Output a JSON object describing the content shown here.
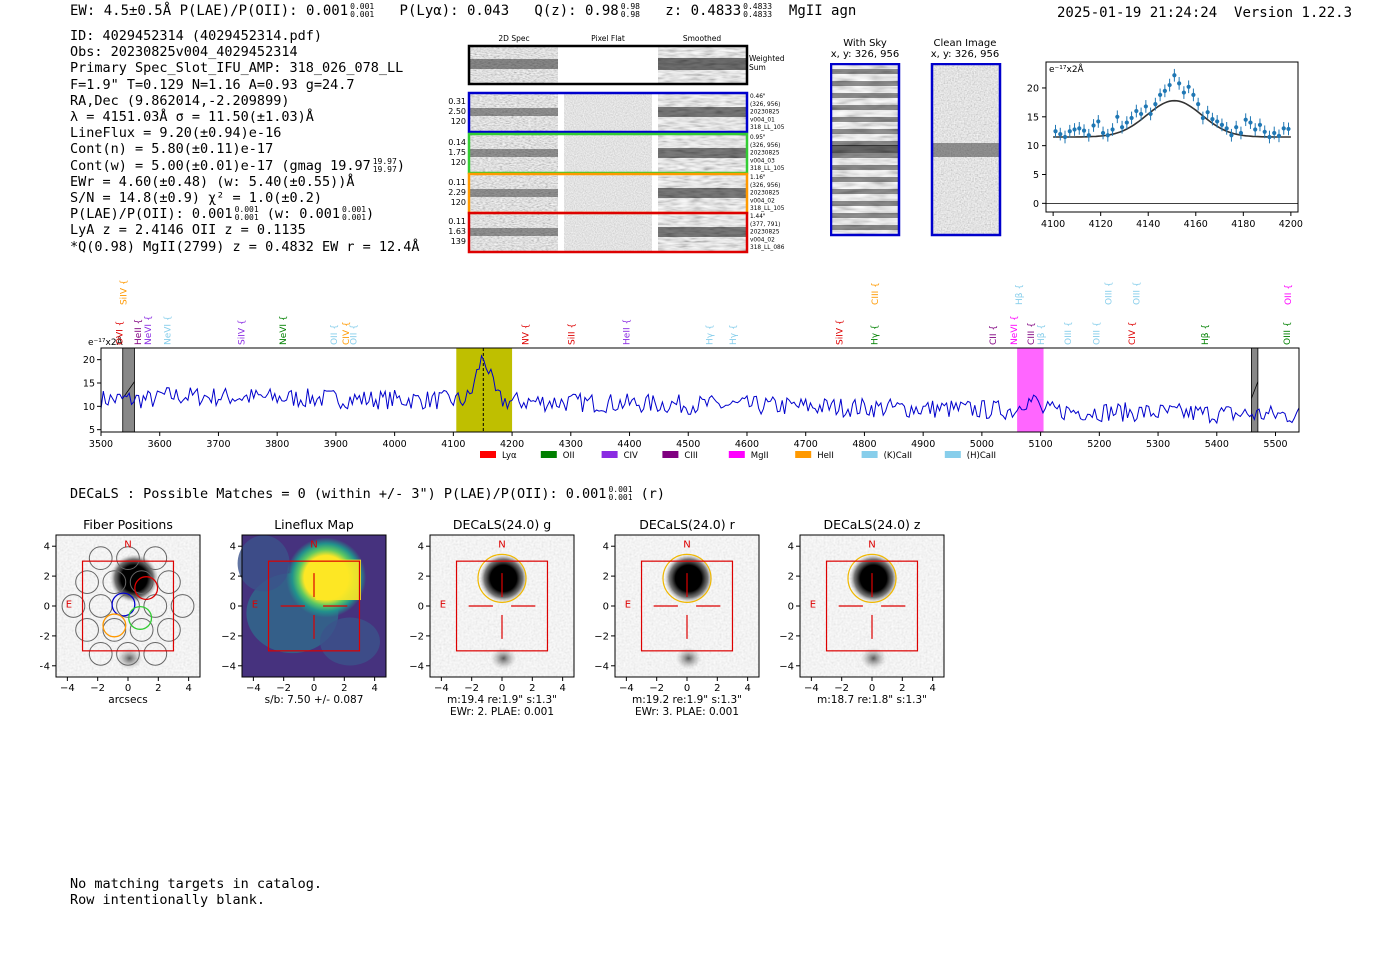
{
  "header": {
    "summary": "EW: 4.5±0.5Å  P(LAE)/P(OII): 0.001",
    "summary_sup": "0.001",
    "summary_sub": "0.001",
    "plya": "P(Lyα): 0.043",
    "q": "Q(z): 0.98",
    "q_sup": "0.98",
    "q_sub": "0.98",
    "z": "z: 0.4833",
    "z_sup": "0.4833",
    "z_sub": "0.4833",
    "tags": "MgII  agn",
    "timestamp": "2025-01-19 21:24:24",
    "version": "Version 1.22.3"
  },
  "info": {
    "lines": [
      "ID: 4029452314 (4029452314.pdf)",
      "Obs: 20230825v004_4029452314",
      "Primary Spec_Slot_IFU_AMP: 318_026_078_LL",
      "F=1.9\"  T=0.129  N=1.16  A=0.93  g=24.7",
      "RA,Dec (9.862014,-2.209899)",
      "λ = 4151.03Å  σ = 11.50(±1.03)Å",
      "LineFlux = 9.20(±0.94)e-16",
      "Cont(n) = 5.80(±0.11)e-17"
    ],
    "contw": "Cont(w) = 5.00(±0.01)e-17 (gmag 19.97",
    "contw_sup": "19.97",
    "contw_sub": "19.97",
    "contw_end": ")",
    "ewr": "EWr = 4.60(±0.48) (w: 5.40(±0.55))Å",
    "sn": "S/N = 14.8(±0.9)  χ² = 1.0(±0.2)",
    "plae": "P(LAE)/P(OII): 0.001",
    "plae_sup": "0.001",
    "plae_sub": "0.001",
    "plae_w": "(w: 0.001",
    "plae_w_sup": "0.001",
    "plae_w_sub": "0.001",
    "plae_end": ")",
    "lya": "LyA z = 2.4146   OII z = 0.1135",
    "qline": "*Q(0.98) MgII(2799) z = 0.4832  EW r = 12.4Å"
  },
  "cutouts": {
    "col_titles": [
      "2D Spec",
      "Pixel Flat",
      "Smoothed"
    ],
    "weighted_label": "Weighted\nSum",
    "rows": [
      {
        "left": [
          "0.31",
          "2.50",
          "120"
        ],
        "right": [
          "0.46\"",
          "(326, 956)",
          "20230825",
          "v004_01",
          "318_LL_105"
        ],
        "color": "#0000cc"
      },
      {
        "left": [
          "0.14",
          "1.75",
          "120"
        ],
        "right": [
          "0.95\"",
          "(326, 956)",
          "20230825",
          "v004_03",
          "318_LL_105"
        ],
        "color": "#33cc33"
      },
      {
        "left": [
          "0.11",
          "2.29",
          "120"
        ],
        "right": [
          "1.16\"",
          "(326, 956)",
          "20230825",
          "v004_02",
          "318_LL_105"
        ],
        "color": "#ff9900"
      },
      {
        "left": [
          "0.11",
          "1.63",
          "139"
        ],
        "right": [
          "1.44\"",
          "(377, 791)",
          "20230825",
          "v004_02",
          "318_LL_086"
        ],
        "color": "#dd0000"
      }
    ],
    "with_sky_title": "With Sky",
    "with_sky_coords": "x, y: 326, 956",
    "clean_title": "Clean Image",
    "clean_coords": "x, y: 326, 956"
  },
  "zoom_chart": {
    "type": "line",
    "unit": "e⁻¹⁷x2Å",
    "xlim": [
      4097,
      4203
    ],
    "ylim": [
      -1.5,
      24.5
    ],
    "xticks": [
      4100,
      4120,
      4140,
      4160,
      4180,
      4200
    ],
    "yticks": [
      0,
      5,
      10,
      15,
      20
    ],
    "points_x": [
      4101,
      4103,
      4105,
      4107,
      4109,
      4111,
      4113,
      4115,
      4117,
      4119,
      4121,
      4123,
      4125,
      4127,
      4129,
      4131,
      4133,
      4135,
      4137,
      4139,
      4141,
      4143,
      4145,
      4147,
      4149,
      4151,
      4153,
      4155,
      4157,
      4159,
      4161,
      4163,
      4165,
      4167,
      4169,
      4171,
      4173,
      4175,
      4177,
      4179,
      4181,
      4183,
      4185,
      4187,
      4189,
      4191,
      4193,
      4195,
      4197,
      4199
    ],
    "points_y": [
      12.5,
      12.0,
      11.5,
      12.5,
      12.8,
      13.0,
      12.6,
      11.8,
      13.5,
      14.2,
      12.2,
      11.8,
      12.8,
      15.0,
      13.2,
      14.0,
      14.8,
      16.0,
      15.5,
      16.8,
      15.5,
      17.2,
      18.8,
      19.5,
      20.5,
      22.2,
      20.8,
      19.2,
      20.2,
      18.8,
      17.2,
      14.8,
      15.8,
      14.6,
      14.2,
      13.6,
      13.0,
      11.8,
      13.2,
      12.2,
      14.5,
      14.0,
      12.8,
      13.6,
      12.4,
      11.5,
      12.2,
      11.7,
      13.0,
      12.9
    ],
    "fit": {
      "base": 11.5,
      "amp": 6.3,
      "center": 4151.0,
      "sigma": 11.5
    }
  },
  "spectrum_chart": {
    "type": "line",
    "unit": "e⁻¹⁷x2Å",
    "xlim": [
      3500,
      5540
    ],
    "ylim": [
      4.5,
      22.5
    ],
    "xticks": [
      3500,
      3600,
      3700,
      3800,
      3900,
      4000,
      4100,
      4200,
      4300,
      4400,
      4500,
      4600,
      4700,
      4800,
      4900,
      5000,
      5100,
      5200,
      5300,
      5400,
      5500
    ],
    "yticks": [
      5,
      10,
      15,
      20
    ],
    "mask_bands": [
      [
        3537,
        3557
      ],
      [
        5459,
        5470
      ]
    ],
    "highlight_main": {
      "range": [
        4105,
        4200
      ],
      "color": "#bfbf00",
      "center": 4151
    },
    "highlight_alt": {
      "range": [
        5060,
        5105
      ],
      "color": "#ff66ff"
    },
    "lines": [
      {
        "label": "SiIV",
        "wl": 3543,
        "color": "#ff9900",
        "row": "top"
      },
      {
        "label": "OVI",
        "wl": 3537,
        "color": "#dd0000",
        "row": "bottom"
      },
      {
        "label": "HeII",
        "wl": 3568,
        "color": "#800080",
        "row": "bottom"
      },
      {
        "label": "NeVI",
        "wl": 3585,
        "color": "#8a2be2",
        "row": "bottom"
      },
      {
        "label": "NeVI",
        "wl": 3618,
        "color": "#87ceeb",
        "row": "bottom"
      },
      {
        "label": "SiIV",
        "wl": 3744,
        "color": "#8a2be2",
        "row": "bottom"
      },
      {
        "label": "NeVI",
        "wl": 3815,
        "color": "#008000",
        "row": "bottom"
      },
      {
        "label": "OII",
        "wl": 3902,
        "color": "#87ceeb",
        "row": "bottom"
      },
      {
        "label": "CIV",
        "wl": 3922,
        "color": "#ff9900",
        "row": "bottom"
      },
      {
        "label": "OII",
        "wl": 3935,
        "color": "#87ceeb",
        "row": "bottom"
      },
      {
        "label": "NV",
        "wl": 4228,
        "color": "#dd0000",
        "row": "bottom"
      },
      {
        "label": "SiII",
        "wl": 4306,
        "color": "#dd0000",
        "row": "bottom"
      },
      {
        "label": "HeII",
        "wl": 4400,
        "color": "#8a2be2",
        "row": "bottom"
      },
      {
        "label": "Hγ",
        "wl": 4541,
        "color": "#87ceeb",
        "row": "bottom"
      },
      {
        "label": "Hγ",
        "wl": 4581,
        "color": "#87ceeb",
        "row": "bottom"
      },
      {
        "label": "SiIV",
        "wl": 4763,
        "color": "#dd0000",
        "row": "bottom"
      },
      {
        "label": "CIII",
        "wl": 4823,
        "color": "#ff9900",
        "row": "top"
      },
      {
        "label": "Hγ",
        "wl": 4822,
        "color": "#008000",
        "row": "bottom"
      },
      {
        "label": "CII",
        "wl": 5024,
        "color": "#800080",
        "row": "bottom"
      },
      {
        "label": "Hβ",
        "wl": 5068,
        "color": "#87ceeb",
        "row": "top"
      },
      {
        "label": "NeVI",
        "wl": 5060,
        "color": "#ff00ff",
        "row": "bottom"
      },
      {
        "label": "CIII",
        "wl": 5089,
        "color": "#800080",
        "row": "bottom"
      },
      {
        "label": "Hβ",
        "wl": 5106,
        "color": "#87ceeb",
        "row": "bottom"
      },
      {
        "label": "OIII",
        "wl": 5152,
        "color": "#87ceeb",
        "row": "bottom"
      },
      {
        "label": "OIII",
        "wl": 5200,
        "color": "#87ceeb",
        "row": "bottom"
      },
      {
        "label": "OIII",
        "wl": 5221,
        "color": "#87ceeb",
        "row": "top"
      },
      {
        "label": "OIII",
        "wl": 5268,
        "color": "#87ceeb",
        "row": "top"
      },
      {
        "label": "CIV",
        "wl": 5261,
        "color": "#dd0000",
        "row": "bottom"
      },
      {
        "label": "Hβ",
        "wl": 5385,
        "color": "#008000",
        "row": "bottom"
      },
      {
        "label": "OII",
        "wl": 5526,
        "color": "#ff00ff",
        "row": "top"
      },
      {
        "label": "OIII",
        "wl": 5525,
        "color": "#008000",
        "row": "bottom"
      }
    ],
    "legend": [
      {
        "label": "Lyα",
        "color": "#ff0000"
      },
      {
        "label": "OII",
        "color": "#008000"
      },
      {
        "label": "CIV",
        "color": "#8a2be2"
      },
      {
        "label": "CIII",
        "color": "#800080"
      },
      {
        "label": "MgII",
        "color": "#ff00ff"
      },
      {
        "label": "HeII",
        "color": "#ff9900"
      },
      {
        "label": "(K)CaII",
        "color": "#87ceeb"
      },
      {
        "label": "(H)CaII",
        "color": "#87ceeb"
      }
    ]
  },
  "decals": {
    "summary": "DECaLS : Possible Matches = 0 (within +/- 3\")  P(LAE)/P(OII): 0.001",
    "summary_sup": "0.001",
    "summary_sub": "0.001",
    "summary_end": "(r)",
    "axis_ticks": [
      -4,
      -2,
      0,
      2,
      4
    ],
    "panels": [
      {
        "title": "Fiber Positions",
        "captions": [
          "arcsecs"
        ],
        "kind": "fibers"
      },
      {
        "title": "Lineflux Map",
        "captions": [
          "s/b: 7.50 +/- 0.087"
        ],
        "kind": "lineflux"
      },
      {
        "title": "DECaLS(24.0) g",
        "captions": [
          "m:19.4  re:1.9\"  s:1.3\"",
          "EWr: 2. PLAE: 0.001"
        ],
        "kind": "g"
      },
      {
        "title": "DECaLS(24.0) r",
        "captions": [
          "m:19.2  re:1.9\"  s:1.3\"",
          "EWr: 3. PLAE: 0.001"
        ],
        "kind": "r"
      },
      {
        "title": "DECaLS(24.0) z",
        "captions": [
          "m:18.7  re:1.8\"  s:1.3\""
        ],
        "kind": "z"
      }
    ],
    "compass_n": "N",
    "compass_e": "E"
  },
  "footer": {
    "line1": "No matching targets in catalog.",
    "line2": "Row intentionally blank."
  },
  "colors": {
    "spectrum": "#0000cc",
    "zoom_points": "#1f77b4",
    "fit": "#333333",
    "aperture": "#dd0000",
    "match_circle": "#f0b800"
  }
}
